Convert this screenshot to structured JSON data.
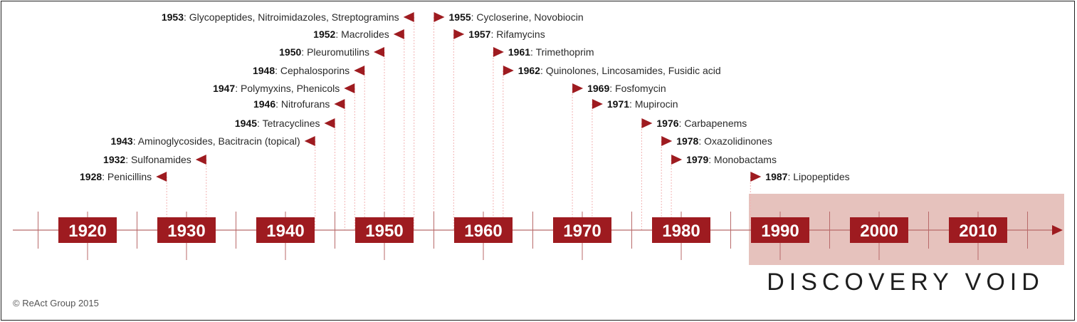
{
  "colors": {
    "accent": "#9e1b20",
    "void_fill": "#e6c2bd",
    "axis": "#b86a6a",
    "guide": "#f2b3b3"
  },
  "decades": [
    {
      "label": "1920",
      "year": 1920
    },
    {
      "label": "1930",
      "year": 1930
    },
    {
      "label": "1940",
      "year": 1940
    },
    {
      "label": "1950",
      "year": 1950
    },
    {
      "label": "1960",
      "year": 1960
    },
    {
      "label": "1970",
      "year": 1970
    },
    {
      "label": "1980",
      "year": 1980
    },
    {
      "label": "1990",
      "year": 1990
    },
    {
      "label": "2000",
      "year": 2000
    },
    {
      "label": "2010",
      "year": 2010
    }
  ],
  "events_left": [
    {
      "year": "1953",
      "name": ": Glycopeptides, Nitroimidazoles, Streptogramins"
    },
    {
      "year": "1952",
      "name": ": Macrolides"
    },
    {
      "year": "1950",
      "name": ": Pleuromutilins"
    },
    {
      "year": "1948",
      "name": ": Cephalosporins"
    },
    {
      "year": "1947",
      "name": ": Polymyxins, Phenicols"
    },
    {
      "year": "1946",
      "name": ": Nitrofurans"
    },
    {
      "year": "1945",
      "name": ": Tetracyclines"
    },
    {
      "year": "1943",
      "name": ": Aminoglycosides, Bacitracin (topical)"
    },
    {
      "year": "1932",
      "name": ": Sulfonamides"
    },
    {
      "year": "1928",
      "name": ": Penicillins"
    }
  ],
  "events_right": [
    {
      "year": "1955",
      "name": ": Cycloserine, Novobiocin"
    },
    {
      "year": "1957",
      "name": ": Rifamycins"
    },
    {
      "year": "1961",
      "name": ": Trimethoprim"
    },
    {
      "year": "1962",
      "name": ": Quinolones, Lincosamides, Fusidic acid"
    },
    {
      "year": "1969",
      "name": ": Fosfomycin"
    },
    {
      "year": "1971",
      "name": ": Mupirocin"
    },
    {
      "year": "1976",
      "name": ": Carbapenems"
    },
    {
      "year": "1978",
      "name": ": Oxazolidinones"
    },
    {
      "year": "1979",
      "name": ": Monobactams"
    },
    {
      "year": "1987",
      "name": ": Lipopeptides"
    }
  ],
  "void_label": "DISCOVERY VOID",
  "credit": "© ReAct Group 2015"
}
